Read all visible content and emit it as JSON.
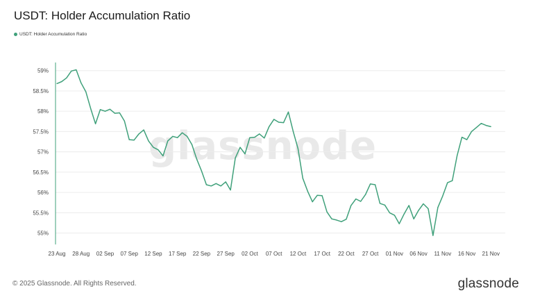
{
  "header": {
    "title": "USDT: Holder Accumulation Ratio"
  },
  "legend": {
    "label": "USDT: Holder Accumulation Ratio",
    "color": "#3fa07a"
  },
  "watermark": "glassnode",
  "footer": {
    "copyright": "© 2025 Glassnode. All Rights Reserved.",
    "logo": "glassnode"
  },
  "chart_data": {
    "type": "line",
    "title": "USDT: Holder Accumulation Ratio",
    "xlabel": "",
    "ylabel": "",
    "series": [
      {
        "name": "USDT: Holder Accumulation Ratio",
        "color": "#3fa07a",
        "x": [
          "2025-08-23",
          "2025-08-24",
          "2025-08-25",
          "2025-08-26",
          "2025-08-27",
          "2025-08-28",
          "2025-08-29",
          "2025-08-30",
          "2025-08-31",
          "2025-09-01",
          "2025-09-02",
          "2025-09-03",
          "2025-09-04",
          "2025-09-05",
          "2025-09-06",
          "2025-09-07",
          "2025-09-08",
          "2025-09-09",
          "2025-09-10",
          "2025-09-11",
          "2025-09-12",
          "2025-09-13",
          "2025-09-14",
          "2025-09-15",
          "2025-09-16",
          "2025-09-17",
          "2025-09-18",
          "2025-09-19",
          "2025-09-20",
          "2025-09-21",
          "2025-09-22",
          "2025-09-23",
          "2025-09-24",
          "2025-09-25",
          "2025-09-26",
          "2025-09-27",
          "2025-09-28",
          "2025-09-29",
          "2025-09-30",
          "2025-10-01",
          "2025-10-02",
          "2025-10-03",
          "2025-10-04",
          "2025-10-05",
          "2025-10-06",
          "2025-10-07",
          "2025-10-08",
          "2025-10-09",
          "2025-10-10",
          "2025-10-11",
          "2025-10-12",
          "2025-10-13",
          "2025-10-14",
          "2025-10-15",
          "2025-10-16",
          "2025-10-17",
          "2025-10-18",
          "2025-10-19",
          "2025-10-20",
          "2025-10-21",
          "2025-10-22",
          "2025-10-23",
          "2025-10-24",
          "2025-10-25",
          "2025-10-26",
          "2025-10-27",
          "2025-10-28",
          "2025-10-29",
          "2025-10-30",
          "2025-10-31",
          "2025-11-01",
          "2025-11-02",
          "2025-11-03",
          "2025-11-04",
          "2025-11-05",
          "2025-11-06",
          "2025-11-07",
          "2025-11-08",
          "2025-11-09",
          "2025-11-10",
          "2025-11-11",
          "2025-11-12",
          "2025-11-13",
          "2025-11-14",
          "2025-11-15",
          "2025-11-16",
          "2025-11-17",
          "2025-11-18",
          "2025-11-19",
          "2025-11-20",
          "2025-11-21"
        ],
        "values": [
          58.68,
          58.73,
          58.82,
          58.99,
          59.02,
          58.7,
          58.48,
          58.07,
          57.69,
          58.04,
          58.0,
          58.05,
          57.95,
          57.96,
          57.76,
          57.3,
          57.29,
          57.44,
          57.54,
          57.27,
          57.11,
          57.05,
          56.9,
          57.27,
          57.38,
          57.35,
          57.47,
          57.38,
          57.18,
          56.82,
          56.53,
          56.19,
          56.16,
          56.22,
          56.16,
          56.26,
          56.06,
          56.85,
          57.11,
          56.95,
          57.35,
          57.36,
          57.44,
          57.34,
          57.62,
          57.8,
          57.73,
          57.72,
          57.98,
          57.5,
          57.08,
          56.35,
          56.03,
          55.77,
          55.93,
          55.92,
          55.52,
          55.35,
          55.32,
          55.28,
          55.34,
          55.68,
          55.84,
          55.78,
          55.95,
          56.21,
          56.19,
          55.73,
          55.69,
          55.5,
          55.44,
          55.23,
          55.47,
          55.68,
          55.35,
          55.56,
          55.72,
          55.6,
          54.94,
          55.63,
          55.91,
          56.24,
          56.29,
          56.91,
          57.36,
          57.3,
          57.5,
          57.6,
          57.7,
          57.65,
          57.62
        ]
      }
    ],
    "xticks": [
      "23 Aug",
      "28 Aug",
      "02 Sep",
      "07 Sep",
      "12 Sep",
      "17 Sep",
      "22 Sep",
      "27 Sep",
      "02 Oct",
      "07 Oct",
      "12 Oct",
      "17 Oct",
      "22 Oct",
      "27 Oct",
      "01 Nov",
      "06 Nov",
      "11 Nov",
      "16 Nov",
      "21 Nov"
    ],
    "yticks": [
      "55%",
      "55.5%",
      "56%",
      "56.5%",
      "57%",
      "57.5%",
      "58%",
      "58.5%",
      "59%"
    ],
    "ytick_values": [
      55,
      55.5,
      56,
      56.5,
      57,
      57.5,
      58,
      58.5,
      59
    ],
    "ylim": [
      54.72,
      59.2
    ],
    "grid": true
  }
}
